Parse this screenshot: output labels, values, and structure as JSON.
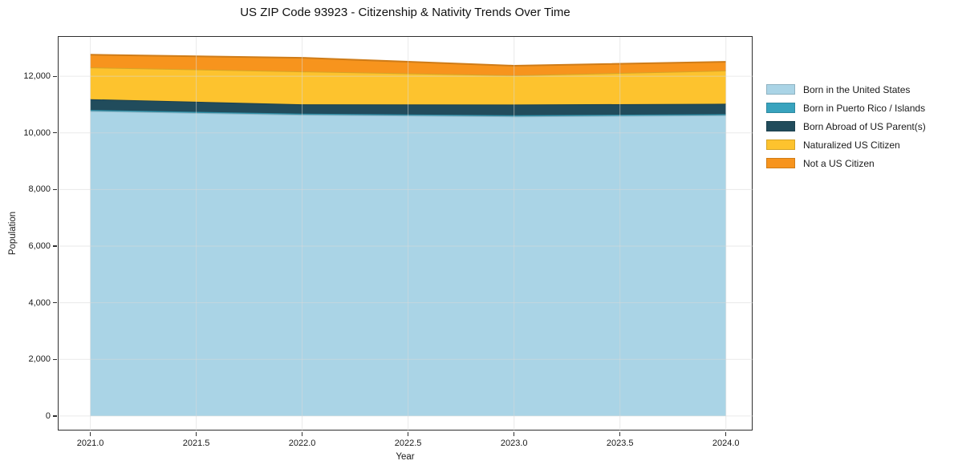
{
  "chart_data": {
    "type": "area",
    "stacked": true,
    "title": "US ZIP Code 93923 - Citizenship & Nativity Trends Over Time",
    "xlabel": "Year",
    "ylabel": "Population",
    "x": [
      2021,
      2022,
      2023,
      2024
    ],
    "series": [
      {
        "name": "Born in the United States",
        "color": "#AAD4E6",
        "values": [
          10770,
          10640,
          10580,
          10620
        ]
      },
      {
        "name": "Born in Puerto Rico / Islands",
        "color": "#38A3BE",
        "values": [
          40,
          40,
          40,
          40
        ]
      },
      {
        "name": "Born Abroad of US Parent(s)",
        "color": "#214C5C",
        "values": [
          380,
          330,
          380,
          370
        ]
      },
      {
        "name": "Naturalized US Citizen",
        "color": "#FDC32E",
        "values": [
          1120,
          1160,
          1030,
          1170
        ]
      },
      {
        "name": "Not a US Citizen",
        "color": "#F7941D",
        "values": [
          450,
          480,
          340,
          310
        ]
      }
    ],
    "xlim": [
      2020.85,
      2024.13
    ],
    "ylim": [
      -540,
      13390
    ],
    "x_tick_values": [
      2021.0,
      2021.5,
      2022.0,
      2022.5,
      2023.0,
      2023.5,
      2024.0
    ],
    "x_tick_labels": [
      "2021.0",
      "2021.5",
      "2022.0",
      "2022.5",
      "2023.0",
      "2023.5",
      "2024.0"
    ],
    "y_tick_values": [
      0,
      2000,
      4000,
      6000,
      8000,
      10000,
      12000
    ],
    "y_tick_labels": [
      "0",
      "2,000",
      "4,000",
      "6,000",
      "8,000",
      "10,000",
      "12,000"
    ],
    "grid": true,
    "grid_color": "#d9d9d9",
    "legend_position": "right"
  }
}
